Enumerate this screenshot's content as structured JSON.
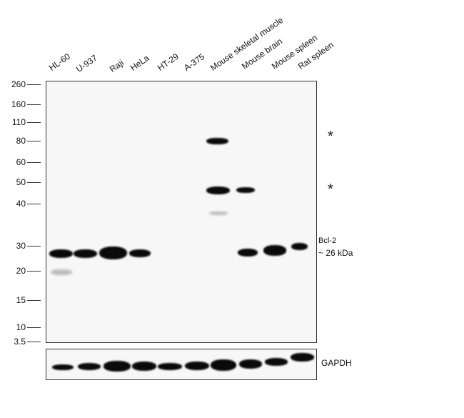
{
  "lanes": [
    "HL-60",
    "U-937",
    "Raji",
    "HeLa",
    "HT-29",
    "A-375",
    "Mouse skeletal muscle",
    "Mouse brain",
    "Mouse spleen",
    "Rat spleen"
  ],
  "markers": [
    "260",
    "160",
    "110",
    "80",
    "60",
    "50",
    "40",
    "30",
    "20",
    "15",
    "10",
    "3.5"
  ],
  "annotations": {
    "target": "Bcl-2",
    "size": "~ 26 kDa",
    "asterisk": "*",
    "loading_control": "GAPDH"
  }
}
